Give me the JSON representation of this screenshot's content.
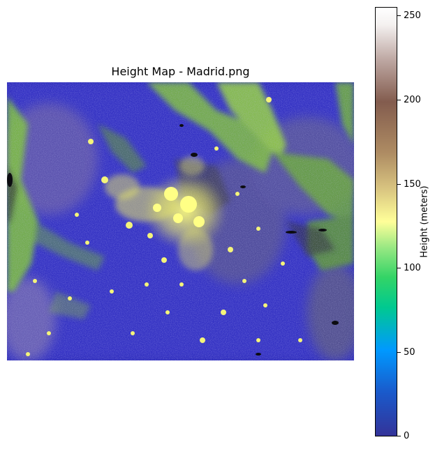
{
  "map": {
    "title": "Height Map - Madrid.png",
    "colorbar_label": "Height (meters)",
    "colorbar_ticks": [
      "0",
      "50",
      "100",
      "150",
      "200",
      "250"
    ],
    "colorbar_range": [
      0,
      255
    ],
    "colormap": [
      "#333399",
      "#0099ff",
      "#33d466",
      "#ffff99",
      "#835c4e",
      "#ffffff"
    ],
    "terrain_colors": {
      "lowland": "#2a2ab5",
      "ridges": "#7fc23a",
      "urban": "#f2f26a",
      "shadow": "#3c3c46"
    }
  }
}
